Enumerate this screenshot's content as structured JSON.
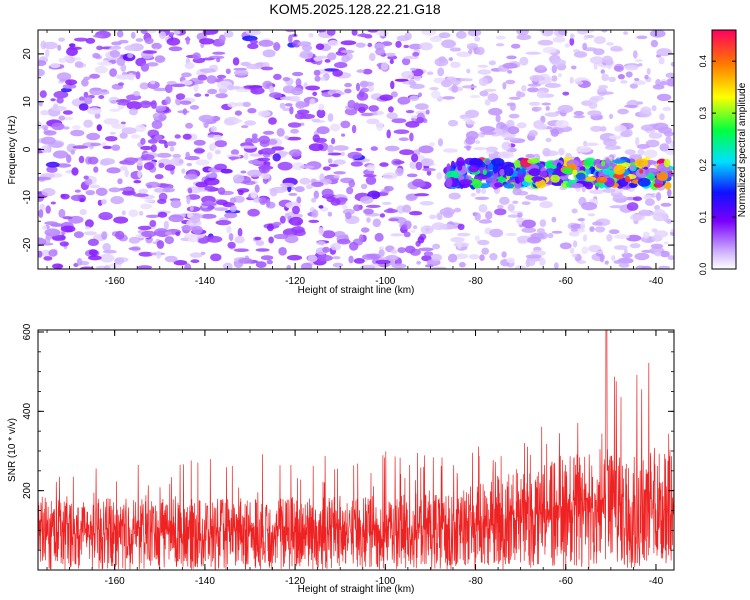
{
  "title": "KOM5.2025.128.22.21.G18",
  "chart_data": [
    {
      "type": "heatmap",
      "xlabel": "Height of straight line (km)",
      "ylabel": "Frequency (Hz)",
      "xlim": [
        -177,
        -36
      ],
      "ylim": [
        -25,
        25
      ],
      "xticks": [
        "-160",
        "-140",
        "-120",
        "-100",
        "-80",
        "-60",
        "-40"
      ],
      "yticks": [
        "20",
        "10",
        "0",
        "-10",
        "-20"
      ],
      "colorbar": {
        "label": "Normalized spectral amplitude",
        "range": [
          0,
          0.46
        ],
        "ticks": [
          "0.0",
          "0.1",
          "0.2",
          "0.3",
          "0.4"
        ]
      },
      "signal_band": {
        "x_start": -86,
        "x_end": -37,
        "freq_center": -5,
        "freq_width": 4,
        "peak_amplitude": 0.45
      },
      "noise_level": 0.06,
      "grid": false
    },
    {
      "type": "line",
      "xlabel": "Height of straight line (km)",
      "ylabel": "SNR (10 * v/v)",
      "xlim": [
        -177,
        -36
      ],
      "ylim": [
        0,
        605
      ],
      "xticks": [
        "-160",
        "-140",
        "-120",
        "-100",
        "-80",
        "-60",
        "-40"
      ],
      "yticks": [
        "200",
        "400",
        "600"
      ],
      "color": "#ee2222",
      "envelope": [
        {
          "x": -177,
          "typical": 110,
          "max": 240
        },
        {
          "x": -140,
          "typical": 110,
          "max": 290
        },
        {
          "x": -120,
          "typical": 115,
          "max": 300
        },
        {
          "x": -100,
          "typical": 115,
          "max": 300
        },
        {
          "x": -85,
          "typical": 120,
          "max": 300
        },
        {
          "x": -75,
          "typical": 150,
          "max": 330
        },
        {
          "x": -60,
          "typical": 175,
          "max": 400
        },
        {
          "x": -51,
          "typical": 190,
          "max": 605
        },
        {
          "x": -36,
          "typical": 190,
          "max": 490
        }
      ],
      "grid": false
    }
  ]
}
